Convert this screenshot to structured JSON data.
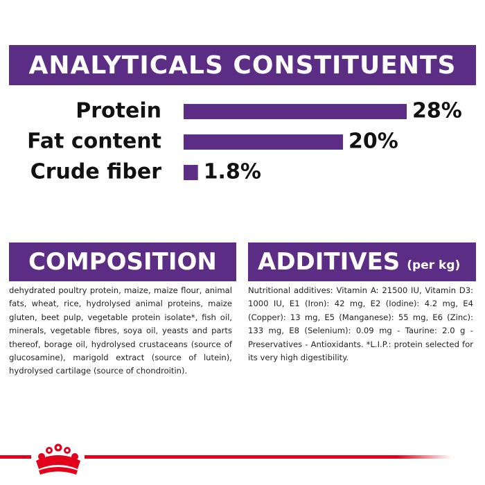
{
  "chart_data": {
    "type": "bar",
    "title": "ANALYTICALS CONSTITUENTS",
    "categories": [
      "Protein",
      "Fat content",
      "Crude fiber"
    ],
    "values": [
      28,
      20,
      1.8
    ],
    "value_labels": [
      "28%",
      "20%",
      "1.8%"
    ],
    "color": "#5c2d84"
  },
  "composition": {
    "title": "COMPOSITION",
    "text": "dehydrated poultry protein, maize, maize flour, animal fats, wheat, rice, hydrolysed animal proteins, maize gluten, beet pulp, vegetable protein isolate*, fish oil, minerals, vegetable fibres, soya oil, yeasts and parts thereof, borage oil, hydrolysed crustaceans (source of glucosamine), marigold extract (source of lutein), hydrolysed cartilage (source of chondroitin)."
  },
  "additives": {
    "title": "ADDITIVES",
    "unit": "(per kg)",
    "text": "Nutritional additives: Vitamin A: 21500 IU, Vitamin D3: 1000 IU, E1 (Iron): 42 mg, E2 (Iodine): 4.2 mg, E4 (Copper): 13 mg, E5 (Manganese): 55 mg, E6 (Zinc): 133 mg, E8 (Selenium): 0.09 mg - Taurine: 2.0 g - Preservatives - Antioxidants. *L.I.P.: protein selected for its very high digestibility."
  }
}
